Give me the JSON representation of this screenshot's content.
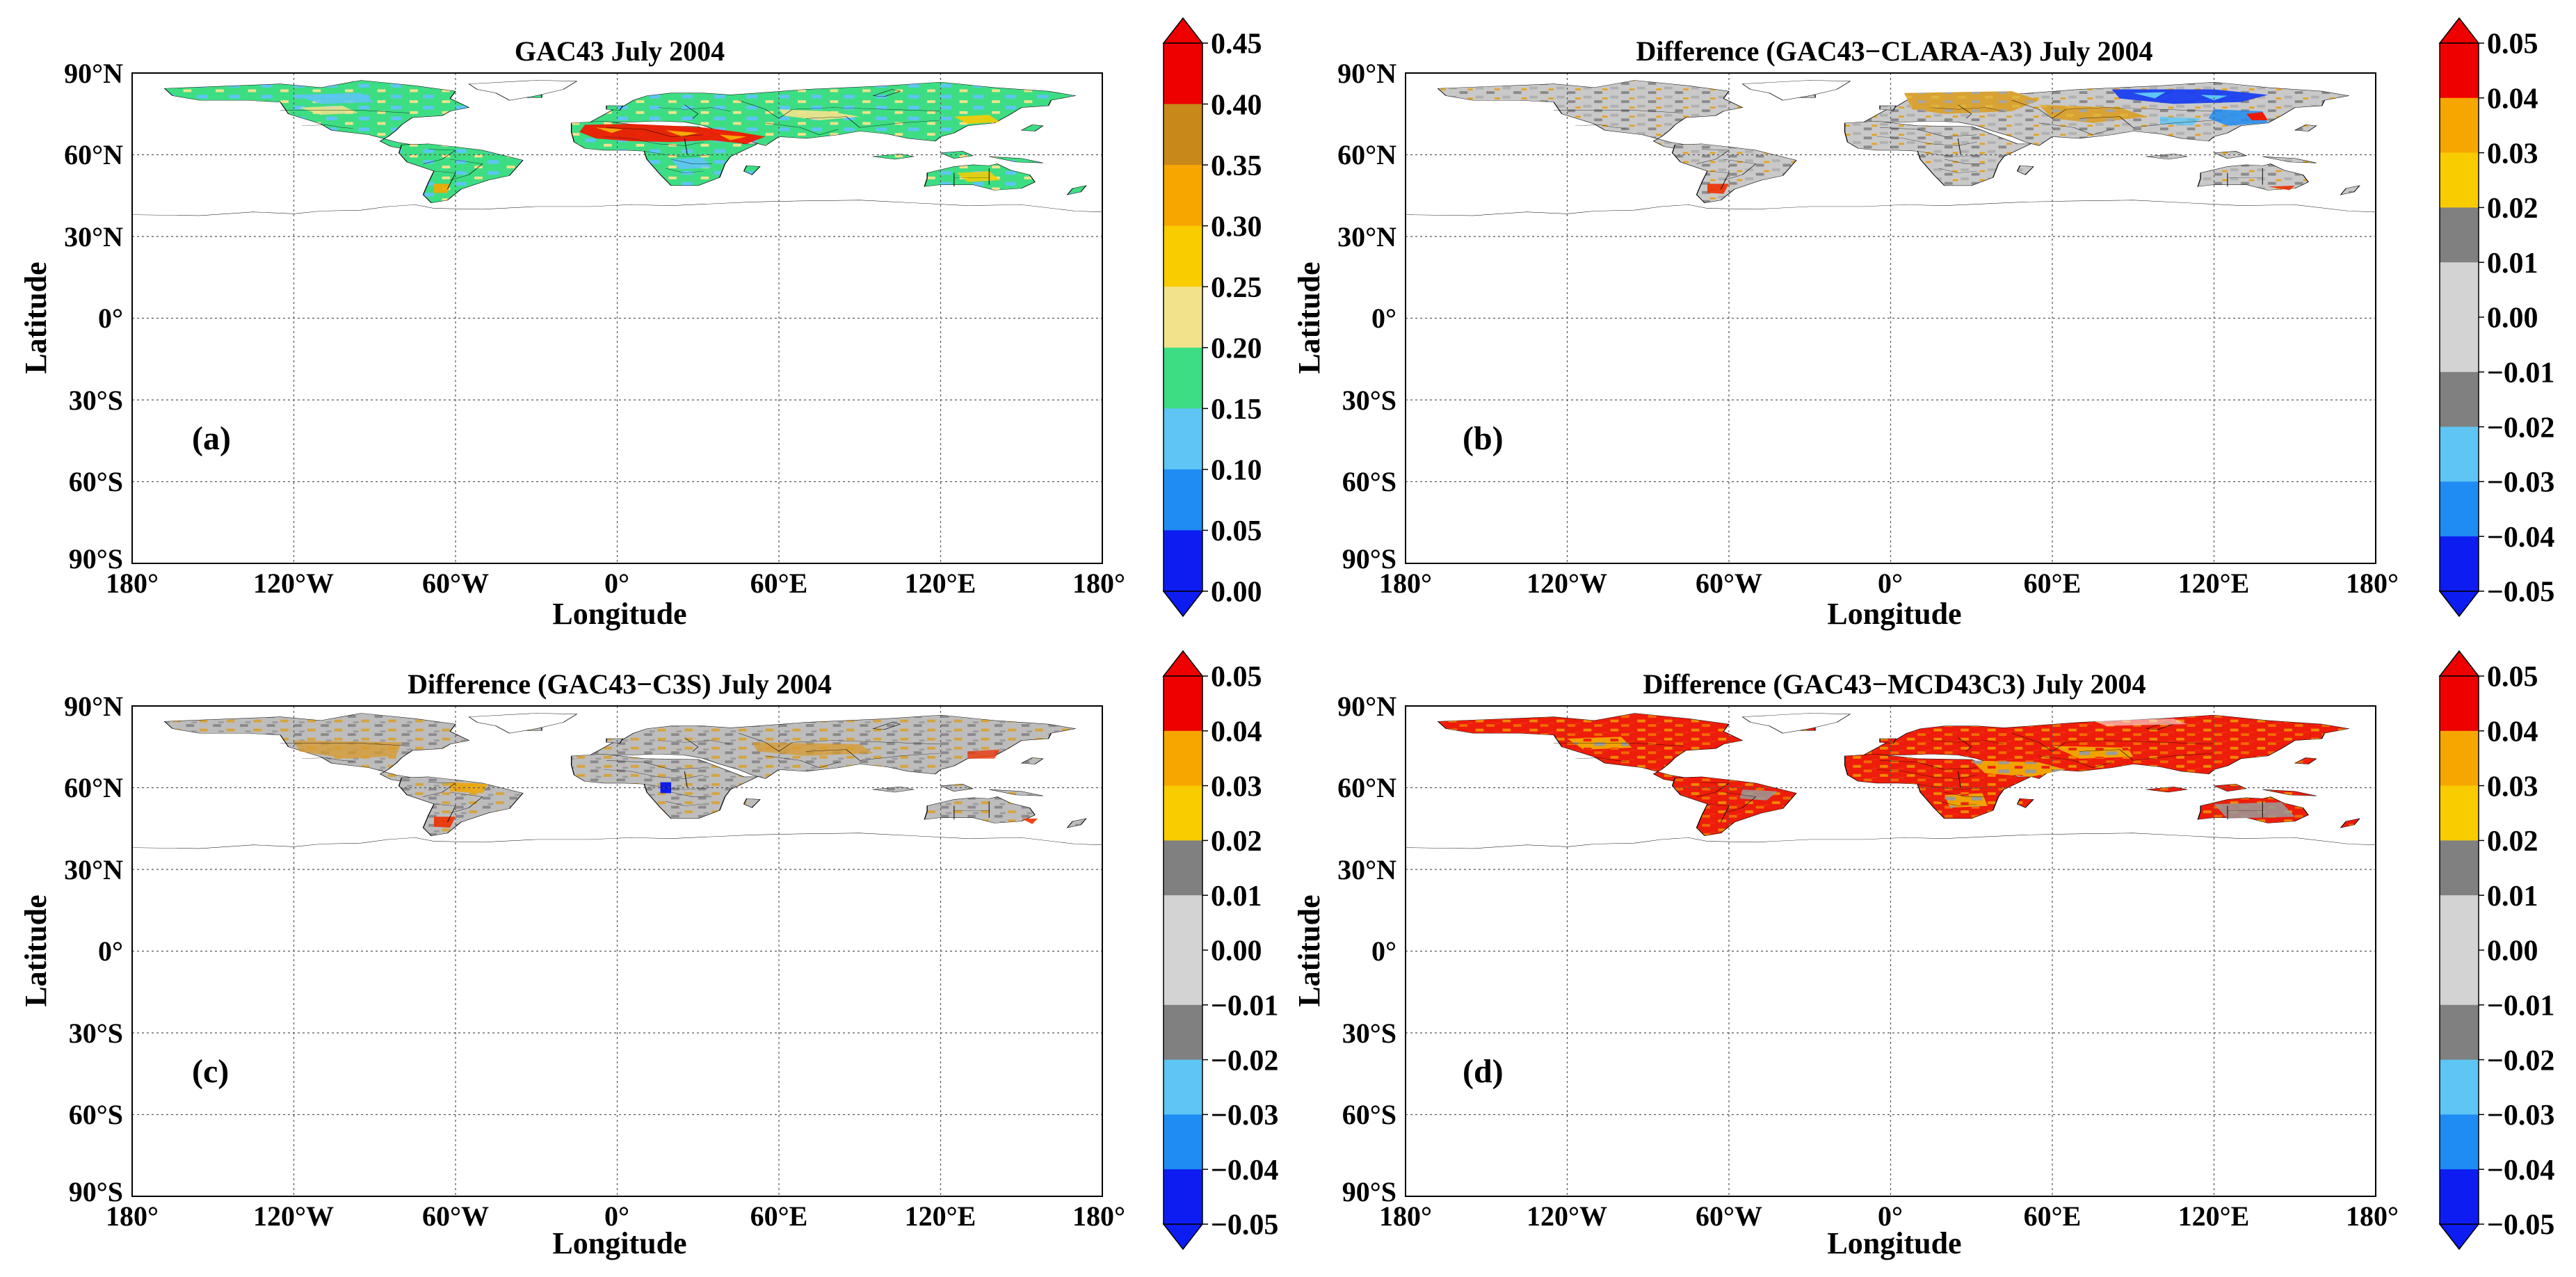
{
  "figure": {
    "axis_labels": {
      "latitude": "Latitude",
      "longitude": "Longitude"
    },
    "lat_ticks": [
      "90°N",
      "60°N",
      "30°N",
      "0°",
      "30°S",
      "60°S",
      "90°S"
    ],
    "lon_ticks": [
      "180°",
      "120°W",
      "60°W",
      "0°",
      "60°E",
      "120°E",
      "180°"
    ],
    "panels": [
      {
        "id": "a",
        "title": "GAC43 July 2004",
        "label": "(a)",
        "palette": "albedo",
        "colorbar": {
          "tick_labels": [
            "0.45",
            "0.40",
            "0.35",
            "0.30",
            "0.25",
            "0.20",
            "0.15",
            "0.10",
            "0.05",
            "0.00"
          ],
          "colors": [
            "#ee0000",
            "#c8881a",
            "#f7a600",
            "#f9cc00",
            "#f3e28c",
            "#3ddd83",
            "#5ec5f5",
            "#1e8cf2",
            "#0d1cf0"
          ],
          "extend_top_color": "#ee0000",
          "extend_bottom_color": "#0d1cf0"
        }
      },
      {
        "id": "b",
        "title": "Difference (GAC43−CLARA-A3) July 2004",
        "label": "(b)",
        "palette": "diff_b",
        "colorbar": {
          "tick_labels": [
            "0.05",
            "0.04",
            "0.03",
            "0.02",
            "0.01",
            "0.00",
            "−0.01",
            "−0.02",
            "−0.03",
            "−0.04",
            "−0.05"
          ],
          "colors": [
            "#ee0000",
            "#f7a600",
            "#f9cc00",
            "#808080",
            "#d3d3d3",
            "#d3d3d3",
            "#808080",
            "#5ec5f5",
            "#1e8cf2",
            "#0d1cf0"
          ],
          "extend_top_color": "#ee0000",
          "extend_bottom_color": "#0d1cf0"
        }
      },
      {
        "id": "c",
        "title": "Difference (GAC43−C3S) July 2004",
        "label": "(c)",
        "palette": "diff_c",
        "colorbar": {
          "tick_labels": [
            "0.05",
            "0.04",
            "0.03",
            "0.02",
            "0.01",
            "0.00",
            "−0.01",
            "−0.02",
            "−0.03",
            "−0.04",
            "−0.05"
          ],
          "colors": [
            "#ee0000",
            "#f7a600",
            "#f9cc00",
            "#808080",
            "#d3d3d3",
            "#d3d3d3",
            "#808080",
            "#5ec5f5",
            "#1e8cf2",
            "#0d1cf0"
          ],
          "extend_top_color": "#ee0000",
          "extend_bottom_color": "#0d1cf0"
        }
      },
      {
        "id": "d",
        "title": "Difference (GAC43−MCD43C3) July 2004",
        "label": "(d)",
        "palette": "diff_d",
        "colorbar": {
          "tick_labels": [
            "0.05",
            "0.04",
            "0.03",
            "0.02",
            "0.01",
            "0.00",
            "−0.01",
            "−0.02",
            "−0.03",
            "−0.04",
            "−0.05"
          ],
          "colors": [
            "#ee0000",
            "#f7a600",
            "#f9cc00",
            "#808080",
            "#d3d3d3",
            "#d3d3d3",
            "#808080",
            "#5ec5f5",
            "#1e8cf2",
            "#0d1cf0"
          ],
          "extend_top_color": "#ee0000",
          "extend_bottom_color": "#0d1cf0"
        }
      }
    ]
  }
}
